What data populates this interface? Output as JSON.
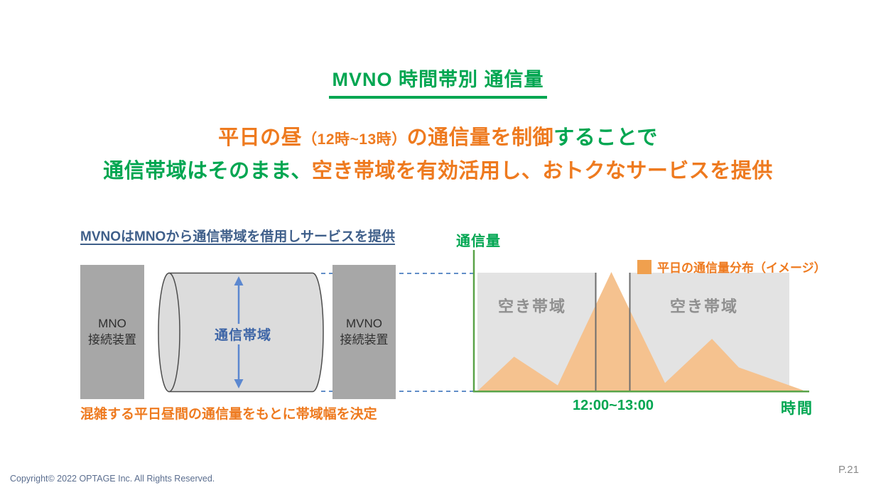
{
  "title": "MVNO 時間帯別 通信量",
  "headline": {
    "line1_part1": "平日の昼",
    "line1_part2": "（12時~13時）",
    "line1_part3": "の通信量を制御",
    "line1_part4": "することで",
    "line2_part1": "通信帯域はそのまま、",
    "line2_part2": "空き帯域を有効活用し、おトクなサービスを提供"
  },
  "diagram": {
    "heading": "MVNOはMNOから通信帯域を借用しサービスを提供",
    "mno_box_line1": "MNO",
    "mno_box_line2": "接続装置",
    "mvno_box_line1": "MVNO",
    "mvno_box_line2": "接続装置",
    "cylinder_label": "通信帯域",
    "caption": "混雑する平日昼間の通信量をもとに帯域幅を決定"
  },
  "chart": {
    "y_axis_label": "通信量",
    "x_axis_label": "時間",
    "legend_label": "平日の通信量分布（イメージ）",
    "free_band_left": "空き帯域",
    "free_band_right": "空き帯域",
    "x_tick": "12:00~13:00"
  },
  "chart_data": {
    "type": "area",
    "title": "平日の通信量分布（イメージ）",
    "xlabel": "時間",
    "ylabel": "通信量",
    "x_axis_ticks": [
      "12:00~13:00"
    ],
    "gridlines": false,
    "legend_position": "top-right",
    "points": [
      [
        1,
        0
      ],
      [
        12,
        29
      ],
      [
        25,
        5
      ],
      [
        41,
        100
      ],
      [
        57,
        7
      ],
      [
        71,
        44
      ],
      [
        79,
        20
      ],
      [
        98,
        1
      ],
      [
        98.5,
        0
      ]
    ],
    "highlight_band": {
      "label": "12:00~13:00",
      "x_start_pct": 36.3,
      "x_end_pct": 46.5
    },
    "annotations": [
      "空き帯域",
      "空き帯域"
    ],
    "band_ceiling_pct": 99
  },
  "footer": {
    "copyright": "Copyright© 2022 OPTAGE Inc. All Rights Reserved.",
    "page": "P.21"
  },
  "colors": {
    "title_green": "#00A651",
    "accent_orange": "#EE7A1F",
    "area_fill_orange": "#F5C28F",
    "legend_swatch_orange": "#F0A04E",
    "free_band_gray": "#E3E3E3",
    "device_box_gray": "#A7A7A7",
    "cylinder_gray": "#DCDCDC",
    "cylinder_text_blue": "#3C64A6",
    "arrow_blue": "#5C88D0",
    "dashed_line_blue": "#4C7FC0",
    "axis_green": "#5AA348",
    "heading_blue": "#3F5F8A"
  }
}
